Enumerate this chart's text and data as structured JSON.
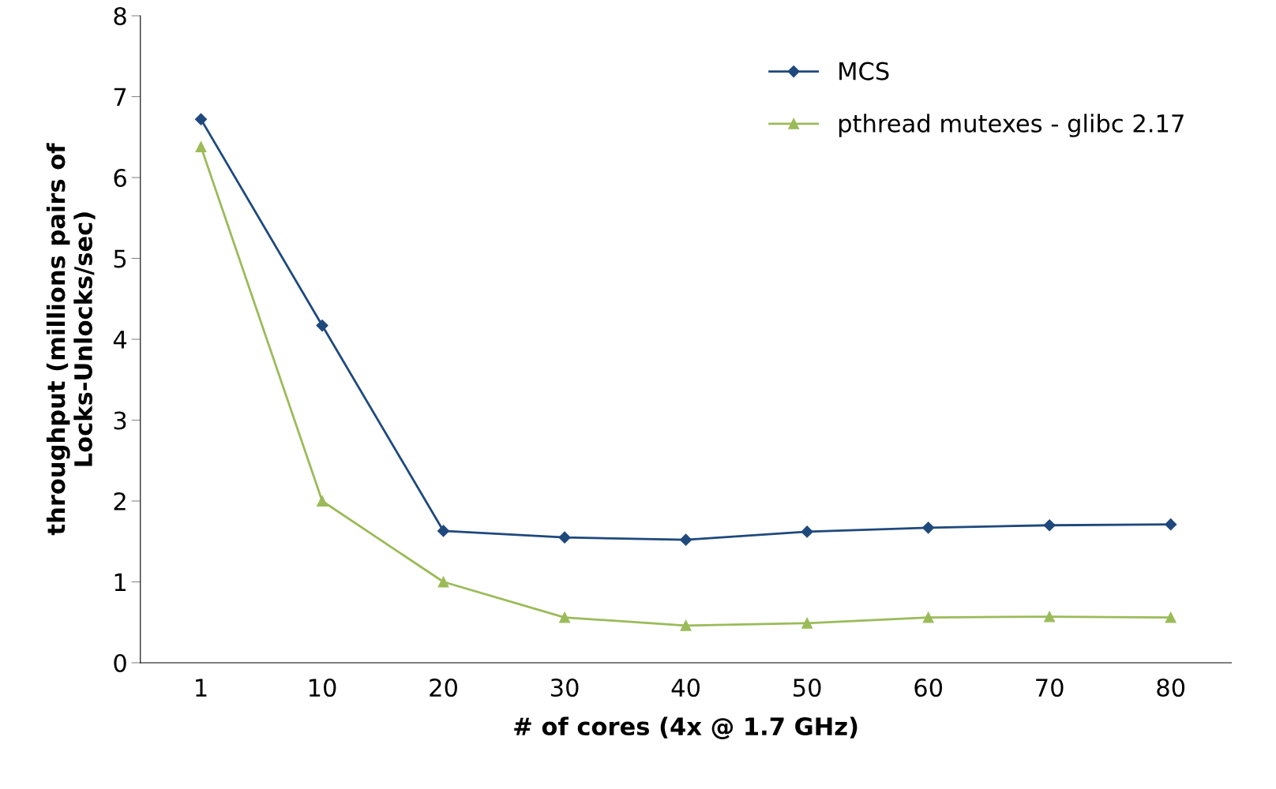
{
  "chart_data": {
    "type": "line",
    "xlabel": "# of cores (4x @ 1.7 GHz)",
    "ylabel": "throughput (millions pairs of\nLocks-Unlocks/sec)",
    "categories": [
      "1",
      "10",
      "20",
      "30",
      "40",
      "50",
      "60",
      "70",
      "80"
    ],
    "series": [
      {
        "name": "MCS",
        "color": "#1f497d",
        "marker": "diamond",
        "values": [
          6.72,
          4.17,
          1.63,
          1.55,
          1.52,
          1.62,
          1.67,
          1.7,
          1.71
        ]
      },
      {
        "name": "pthread mutexes - glibc 2.17",
        "color": "#9bbb59",
        "marker": "triangle",
        "values": [
          6.38,
          2.0,
          1.0,
          0.56,
          0.46,
          0.49,
          0.56,
          0.57,
          0.56
        ]
      }
    ],
    "ylim": [
      0,
      8
    ],
    "yticks": [
      0,
      1,
      2,
      3,
      4,
      5,
      6,
      7,
      8
    ],
    "grid": false,
    "legend": "top right",
    "line_style": "solid"
  }
}
